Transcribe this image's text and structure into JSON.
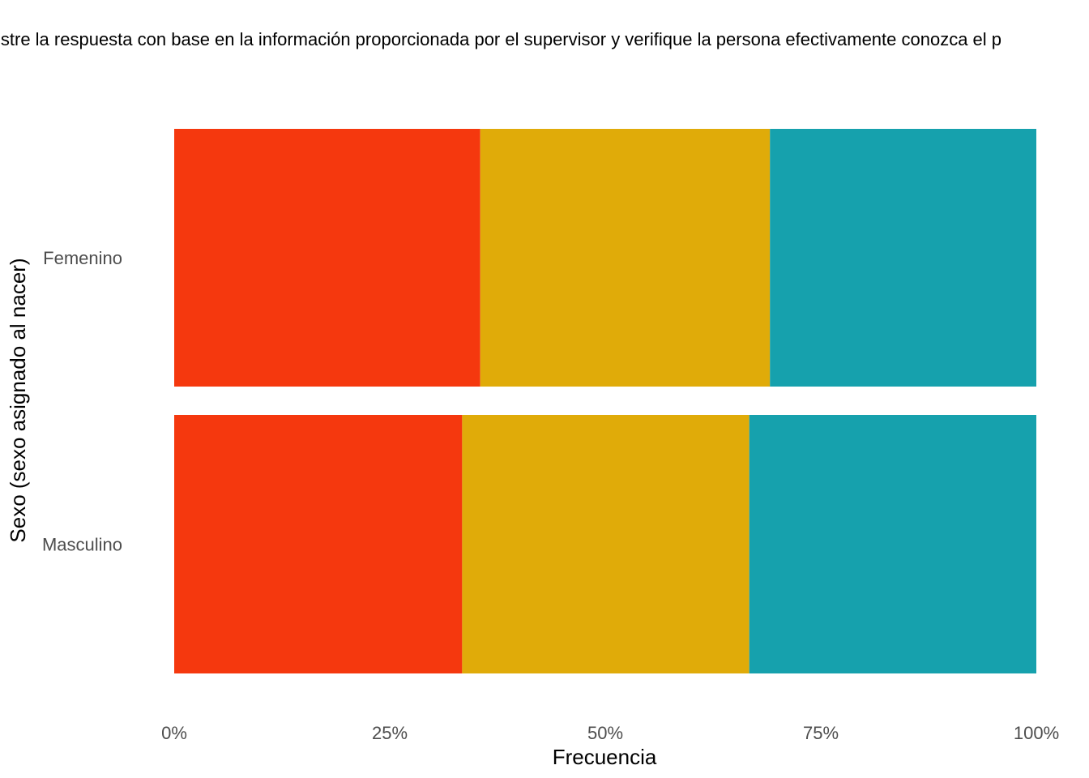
{
  "chart_data": {
    "type": "bar",
    "orientation": "horizontal",
    "stacked": true,
    "normalized": true,
    "title": "istre la respuesta con base en la información proporcionada por el supervisor y verifique la persona efectivamente conozca el p",
    "xlabel": "Frecuencia",
    "ylabel": "Sexo (sexo asignado al nacer)",
    "categories": [
      "Femenino",
      "Masculino"
    ],
    "x_ticks": [
      "0%",
      "25%",
      "50%",
      "75%",
      "100%"
    ],
    "xlim": [
      0,
      1
    ],
    "grid": false,
    "legend": "none",
    "series": [
      {
        "color": "#F5380E",
        "values": [
          0.355,
          0.334
        ]
      },
      {
        "color": "#E0AB09",
        "values": [
          0.336,
          0.333
        ]
      },
      {
        "color": "#16A1AD",
        "values": [
          0.309,
          0.333
        ]
      }
    ]
  }
}
